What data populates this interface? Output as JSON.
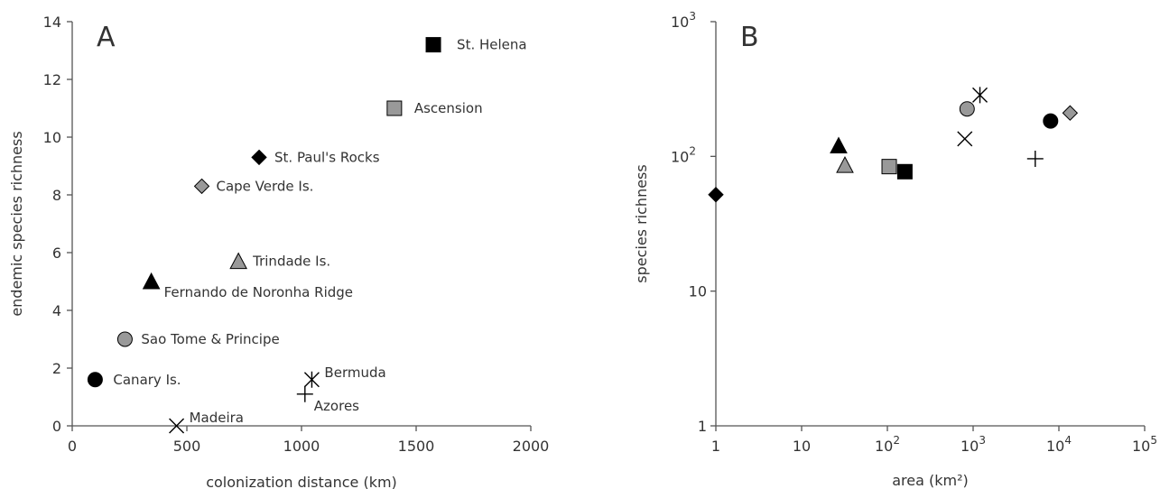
{
  "chart_data": [
    {
      "type": "scatter",
      "panel_label": "A",
      "xlabel": "colonization distance (km)",
      "ylabel": "endemic species richness",
      "xlim": [
        0,
        2000
      ],
      "ylim": [
        0,
        14
      ],
      "xticks": [
        "0",
        "500",
        "1000",
        "1500",
        "2000"
      ],
      "yticks": [
        "0",
        "2",
        "4",
        "6",
        "8",
        "10",
        "12",
        "14"
      ],
      "grid": false,
      "points": [
        {
          "label": "St. Helena",
          "x": 1575,
          "y": 13.2,
          "marker": "square",
          "color": "#000000"
        },
        {
          "label": "Ascension",
          "x": 1405,
          "y": 11.0,
          "marker": "square",
          "color": "#999999"
        },
        {
          "label": "St. Paul's Rocks",
          "x": 815,
          "y": 9.3,
          "marker": "diamond",
          "color": "#000000"
        },
        {
          "label": "Cape Verde Is.",
          "x": 565,
          "y": 8.3,
          "marker": "diamond",
          "color": "#999999"
        },
        {
          "label": "Trindade Is.",
          "x": 725,
          "y": 5.7,
          "marker": "triangle",
          "color": "#999999"
        },
        {
          "label": "Fernando de Noronha Ridge",
          "x": 345,
          "y": 5.0,
          "marker": "triangle",
          "color": "#000000"
        },
        {
          "label": "Sao Tome & Principe",
          "x": 230,
          "y": 3.0,
          "marker": "circle",
          "color": "#999999"
        },
        {
          "label": "Canary Is.",
          "x": 100,
          "y": 1.6,
          "marker": "circle",
          "color": "#000000"
        },
        {
          "label": "Bermuda",
          "x": 1045,
          "y": 1.6,
          "marker": "asterisk",
          "color": "#000000"
        },
        {
          "label": "Azores",
          "x": 1015,
          "y": 1.1,
          "marker": "plus",
          "color": "#000000"
        },
        {
          "label": "Madeira",
          "x": 455,
          "y": 0.0,
          "marker": "x",
          "color": "#000000"
        }
      ]
    },
    {
      "type": "scatter",
      "panel_label": "B",
      "xlabel": "area (km²)",
      "ylabel": "species richness",
      "xscale": "log",
      "yscale": "log",
      "xlim": [
        1,
        100000
      ],
      "ylim": [
        1,
        1000
      ],
      "xticks": [
        {
          "base": "1",
          "exp": ""
        },
        {
          "base": "10",
          "exp": ""
        },
        {
          "base": "10",
          "exp": "2"
        },
        {
          "base": "10",
          "exp": "3"
        },
        {
          "base": "10",
          "exp": "4"
        },
        {
          "base": "10",
          "exp": "5"
        }
      ],
      "yticks": [
        {
          "base": "1",
          "exp": ""
        },
        {
          "base": "10",
          "exp": ""
        },
        {
          "base": "10",
          "exp": "2"
        },
        {
          "base": "10",
          "exp": "3"
        }
      ],
      "grid": false,
      "points": [
        {
          "x": 1,
          "y": 52,
          "marker": "diamond",
          "color": "#000000"
        },
        {
          "x": 27,
          "y": 120,
          "marker": "triangle",
          "color": "#000000"
        },
        {
          "x": 32,
          "y": 86,
          "marker": "triangle",
          "color": "#999999"
        },
        {
          "x": 105,
          "y": 84,
          "marker": "square",
          "color": "#999999"
        },
        {
          "x": 160,
          "y": 77,
          "marker": "square",
          "color": "#000000"
        },
        {
          "x": 800,
          "y": 135,
          "marker": "x",
          "color": "#000000"
        },
        {
          "x": 850,
          "y": 225,
          "marker": "circle",
          "color": "#999999"
        },
        {
          "x": 1200,
          "y": 285,
          "marker": "asterisk",
          "color": "#000000"
        },
        {
          "x": 5300,
          "y": 96,
          "marker": "plus",
          "color": "#000000"
        },
        {
          "x": 8000,
          "y": 183,
          "marker": "circle",
          "color": "#000000"
        },
        {
          "x": 13500,
          "y": 210,
          "marker": "diamond",
          "color": "#999999"
        }
      ]
    }
  ]
}
